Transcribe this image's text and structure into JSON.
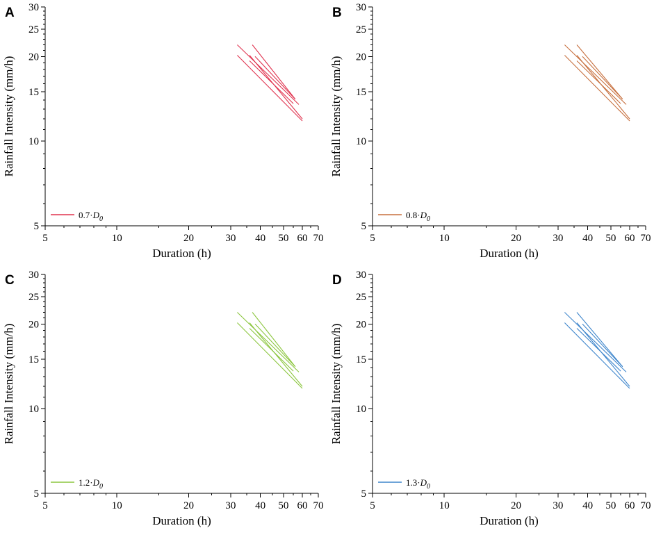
{
  "chart_data": [
    {
      "panel_letter": "A",
      "type": "line",
      "xscale": "log",
      "yscale": "log",
      "xlabel": "Duration (h)",
      "ylabel": "Rainfall Intensity (mm/h)",
      "xlim": [
        5,
        70
      ],
      "ylim": [
        5,
        30
      ],
      "x_ticks": [
        5,
        10,
        20,
        30,
        40,
        50,
        60,
        70
      ],
      "y_ticks": [
        5,
        10,
        15,
        20,
        25,
        30
      ],
      "legend": {
        "prefix": "0.7·",
        "symbol": "D",
        "subscript": "0",
        "placement": "bottom-left"
      },
      "color": "#e0334f",
      "series": [
        {
          "x": [
            32,
            60
          ],
          "y": [
            20.2,
            11.8
          ]
        },
        {
          "x": [
            32,
            58
          ],
          "y": [
            22.0,
            13.5
          ]
        },
        {
          "x": [
            36,
            60
          ],
          "y": [
            20.2,
            12.0
          ]
        },
        {
          "x": [
            36,
            55
          ],
          "y": [
            19.3,
            13.6
          ]
        },
        {
          "x": [
            37,
            56
          ],
          "y": [
            22.0,
            14.1
          ]
        },
        {
          "x": [
            38,
            56
          ],
          "y": [
            20.0,
            14.1
          ]
        }
      ]
    },
    {
      "panel_letter": "B",
      "type": "line",
      "xscale": "log",
      "yscale": "log",
      "xlabel": "Duration (h)",
      "ylabel": "Rainfall Intensity (mm/h)",
      "xlim": [
        5,
        70
      ],
      "ylim": [
        5,
        30
      ],
      "x_ticks": [
        5,
        10,
        20,
        30,
        40,
        50,
        60,
        70
      ],
      "y_ticks": [
        5,
        10,
        15,
        20,
        25,
        30
      ],
      "legend": {
        "prefix": "0.8·",
        "symbol": "D",
        "subscript": "0",
        "placement": "bottom-left"
      },
      "color": "#c7703f",
      "series": [
        {
          "x": [
            32,
            60
          ],
          "y": [
            20.2,
            11.8
          ]
        },
        {
          "x": [
            32,
            58
          ],
          "y": [
            22.0,
            13.5
          ]
        },
        {
          "x": [
            36,
            60
          ],
          "y": [
            20.2,
            12.0
          ]
        },
        {
          "x": [
            36,
            55
          ],
          "y": [
            19.3,
            13.6
          ]
        },
        {
          "x": [
            36,
            56
          ],
          "y": [
            22.0,
            14.1
          ]
        },
        {
          "x": [
            38,
            56
          ],
          "y": [
            20.0,
            14.1
          ]
        }
      ]
    },
    {
      "panel_letter": "C",
      "type": "line",
      "xscale": "log",
      "yscale": "log",
      "xlabel": "Duration (h)",
      "ylabel": "Rainfall Intensity (mm/h)",
      "xlim": [
        5,
        70
      ],
      "ylim": [
        5,
        30
      ],
      "x_ticks": [
        5,
        10,
        20,
        30,
        40,
        50,
        60,
        70
      ],
      "y_ticks": [
        5,
        10,
        15,
        20,
        25,
        30
      ],
      "legend": {
        "prefix": "1.2·",
        "symbol": "D",
        "subscript": "0",
        "placement": "bottom-left"
      },
      "color": "#8cc63f",
      "series": [
        {
          "x": [
            32,
            60
          ],
          "y": [
            20.2,
            11.8
          ]
        },
        {
          "x": [
            32,
            58
          ],
          "y": [
            22.0,
            13.5
          ]
        },
        {
          "x": [
            36,
            60
          ],
          "y": [
            20.2,
            12.0
          ]
        },
        {
          "x": [
            36,
            55
          ],
          "y": [
            19.3,
            13.6
          ]
        },
        {
          "x": [
            37,
            56
          ],
          "y": [
            22.0,
            14.1
          ]
        },
        {
          "x": [
            38,
            56
          ],
          "y": [
            20.0,
            14.1
          ]
        }
      ]
    },
    {
      "panel_letter": "D",
      "type": "line",
      "xscale": "log",
      "yscale": "log",
      "xlabel": "Duration (h)",
      "ylabel": "Rainfall Intensity (mm/h)",
      "xlim": [
        5,
        70
      ],
      "ylim": [
        5,
        30
      ],
      "x_ticks": [
        5,
        10,
        20,
        30,
        40,
        50,
        60,
        70
      ],
      "y_ticks": [
        5,
        10,
        15,
        20,
        25,
        30
      ],
      "legend": {
        "prefix": "1.3·",
        "symbol": "D",
        "subscript": "0",
        "placement": "bottom-left"
      },
      "color": "#3f86cc",
      "series": [
        {
          "x": [
            32,
            60
          ],
          "y": [
            20.2,
            11.8
          ]
        },
        {
          "x": [
            32,
            58
          ],
          "y": [
            22.0,
            13.5
          ]
        },
        {
          "x": [
            36,
            60
          ],
          "y": [
            20.2,
            12.0
          ]
        },
        {
          "x": [
            36,
            55
          ],
          "y": [
            19.3,
            13.6
          ]
        },
        {
          "x": [
            36,
            56
          ],
          "y": [
            22.0,
            14.1
          ]
        },
        {
          "x": [
            38,
            56
          ],
          "y": [
            20.0,
            14.1
          ]
        }
      ]
    }
  ]
}
